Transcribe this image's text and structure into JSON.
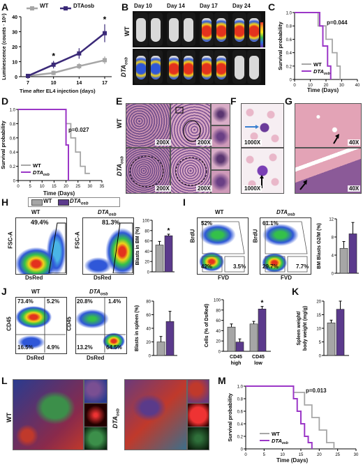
{
  "panels": {
    "A": "A",
    "B": "B",
    "C": "C",
    "D": "D",
    "E": "E",
    "F": "F",
    "G": "G",
    "H": "H",
    "I": "I",
    "J": "J",
    "K": "K",
    "L": "L",
    "M": "M"
  },
  "legend": {
    "wt": "WT",
    "dta": "DTAosb",
    "dta_base": "DTA",
    "dta_sub": "osb"
  },
  "colors": {
    "wt": "#a6a6a6",
    "dta": "#5b3a8c",
    "dta_bright": "#9b37c7",
    "histo": "#c98fb0"
  },
  "panel_a": {
    "ylabel": "Luminescence (counts · 10⁶)",
    "xlabel": "Time after EL4 injection (days)",
    "star": "*",
    "chart_data": {
      "type": "line",
      "categories": [
        "7",
        "10",
        "14",
        "17"
      ],
      "ylim": [
        0,
        40
      ],
      "yticks": [
        "0",
        "10",
        "20",
        "30",
        "40"
      ],
      "series": [
        {
          "name": "WT",
          "values": [
            0.5,
            2.5,
            7,
            11
          ],
          "errors": [
            0.3,
            1.5,
            2,
            2.5
          ]
        },
        {
          "name": "DTAosb",
          "values": [
            0.5,
            8,
            15.5,
            29
          ],
          "errors": [
            0.3,
            2.5,
            3.5,
            6
          ]
        }
      ],
      "annotations": [
        "*",
        "*"
      ]
    }
  },
  "panel_b": {
    "days": [
      "Day 10",
      "Day 14",
      "Day 17",
      "Day 24"
    ],
    "row_wt": "WT",
    "row_dta": "DTAosb"
  },
  "panel_c": {
    "pvalue": "p=0.044",
    "ylabel": "Survival probability",
    "xlabel": "Time (Days)",
    "chart_data": {
      "type": "line",
      "xticks": [
        "0",
        "10",
        "20",
        "30",
        "40"
      ],
      "yticks": [
        "0",
        "0.2",
        "0.4",
        "0.6",
        "0.8",
        "1.0"
      ],
      "xlim": [
        0,
        40
      ],
      "ylim": [
        0,
        1
      ],
      "series": [
        {
          "name": "WT",
          "x": [
            0,
            15,
            15,
            20,
            20,
            24,
            24,
            27,
            27,
            29,
            29
          ],
          "y": [
            1,
            1,
            0.8,
            0.8,
            0.6,
            0.6,
            0.4,
            0.4,
            0.2,
            0.2,
            0
          ]
        },
        {
          "name": "DTAosb",
          "x": [
            0,
            16,
            16,
            18,
            18,
            21,
            21,
            23,
            23
          ],
          "y": [
            1,
            1,
            0.8,
            0.8,
            0.5,
            0.5,
            0.2,
            0.2,
            0
          ]
        }
      ]
    }
  },
  "panel_d": {
    "pvalue": "p=0.027",
    "ylabel": "Survival probability",
    "xlabel": "Time (Days)",
    "chart_data": {
      "type": "line",
      "xticks": [
        "0",
        "5",
        "10",
        "15",
        "20",
        "25",
        "30",
        "35"
      ],
      "yticks": [
        "0",
        "0.2",
        "0.4",
        "0.6",
        "0.8",
        "1.0"
      ],
      "xlim": [
        0,
        35
      ],
      "ylim": [
        0,
        1
      ],
      "series": [
        {
          "name": "WT",
          "x": [
            0,
            20,
            20,
            22,
            22,
            24,
            24,
            26,
            26,
            28,
            28,
            30
          ],
          "y": [
            1,
            1,
            0.8,
            0.8,
            0.6,
            0.6,
            0.4,
            0.4,
            0.2,
            0.2,
            0.1,
            0.1
          ]
        },
        {
          "name": "DTAosb",
          "x": [
            0,
            20,
            20,
            21,
            21
          ],
          "y": [
            1,
            1,
            0.5,
            0.5,
            0
          ]
        }
      ]
    }
  },
  "panel_e": {
    "row_wt": "WT",
    "row_dta": "DTAosb",
    "mag": "200X"
  },
  "panel_f": {
    "mag": "1000X"
  },
  "panel_g": {
    "mag": "40X"
  },
  "panel_h": {
    "wt_title": "WT",
    "dta_title": "DTAosb",
    "wt_pct": "49.4%",
    "dta_pct": "81.3%",
    "yaxis": "FSC-A",
    "xaxis": "DsRed",
    "bar_ylabel": "Blasts in BM (%)",
    "star": "*",
    "chart_data": {
      "type": "bar",
      "categories": [
        "WT",
        "DTAosb"
      ],
      "values": [
        52,
        70
      ],
      "errors": [
        7,
        3
      ],
      "ylim": [
        0,
        100
      ],
      "yticks": [
        "0",
        "20",
        "40",
        "60",
        "80",
        "100"
      ]
    }
  },
  "panel_i": {
    "wt_title": "WT",
    "dta_title": "DTAosb",
    "wt_top": "52%",
    "wt_bl": "42%",
    "wt_br": "3.5%",
    "dta_top": "61.1%",
    "dta_bl": "29.7%",
    "dta_br": "7.7%",
    "yaxis": "BrdU",
    "xaxis": "FVD",
    "bar_ylabel": "BM Blasts G2/M (%)",
    "chart_data": {
      "type": "bar",
      "categories": [
        "WT",
        "DTAosb"
      ],
      "values": [
        5.5,
        8.7
      ],
      "errors": [
        1.5,
        2.5
      ],
      "ylim": [
        0,
        12
      ],
      "yticks": [
        "0",
        "4",
        "8",
        "12"
      ]
    }
  },
  "panel_j": {
    "wt_title": "WT",
    "dta_title": "DTAosb",
    "wt_tl": "73.4%",
    "wt_tr": "5.2%",
    "wt_bl": "16.5%",
    "wt_br": "4.9%",
    "dta_tl": "20.8%",
    "dta_tr": "1.4%",
    "dta_bl": "13.2%",
    "dta_br": "64.5%",
    "yaxis": "CD45",
    "xaxis": "DsRed",
    "bar1_ylabel": "Blasts in spleen (%)",
    "bar2_ylabel": "Cells (% of DsRed)",
    "group1": "CD45\nhigh",
    "group2": "CD45\nlow",
    "group1_l1": "CD45",
    "group1_l2": "high",
    "group2_l1": "CD45",
    "group2_l2": "low",
    "star": "*",
    "chart_data": [
      {
        "type": "bar",
        "categories": [
          "WT",
          "DTAosb"
        ],
        "values": [
          20,
          50
        ],
        "errors": [
          8,
          15
        ],
        "ylim": [
          0,
          80
        ],
        "yticks": [
          "0",
          "20",
          "40",
          "60",
          "80"
        ]
      },
      {
        "type": "bar",
        "categories": [
          "CD45 high",
          "CD45 low"
        ],
        "series": [
          {
            "name": "WT",
            "values": [
              47,
              53
            ]
          },
          {
            "name": "DTAosb",
            "values": [
              18,
              82
            ]
          }
        ],
        "errors": [
          [
            6,
            5
          ],
          [
            6,
            5
          ]
        ],
        "ylim": [
          0,
          100
        ],
        "yticks": [
          "0",
          "20",
          "40",
          "60",
          "80",
          "100"
        ]
      }
    ]
  },
  "panel_k": {
    "ylabel": "Spleen weight/ body weight (mg/g)",
    "ylabel_l1": "Spleen weight/",
    "ylabel_l2": "body weight (mg/g)",
    "chart_data": {
      "type": "bar",
      "categories": [
        "WT",
        "DTAosb"
      ],
      "values": [
        12,
        17
      ],
      "errors": [
        1,
        3
      ],
      "ylim": [
        0,
        20
      ],
      "yticks": [
        "0",
        "5",
        "10",
        "15",
        "20"
      ]
    }
  },
  "panel_l": {
    "row_wt": "WT",
    "row_dta": "DTAosb"
  },
  "panel_m": {
    "pvalue": "p=0.013",
    "ylabel": "Survival probability",
    "xlabel": "Time (Days)",
    "chart_data": {
      "type": "line",
      "xticks": [
        "0",
        "5",
        "10",
        "15",
        "20",
        "25",
        "30"
      ],
      "yticks": [
        "0",
        "0.2",
        "0.4",
        "0.6",
        "0.8",
        "1.0"
      ],
      "xlim": [
        0,
        30
      ],
      "ylim": [
        0,
        1
      ],
      "series": [
        {
          "name": "WT",
          "x": [
            0,
            13,
            13,
            16,
            16,
            18,
            18,
            20,
            20,
            22,
            22,
            24,
            24
          ],
          "y": [
            1,
            1,
            0.9,
            0.9,
            0.7,
            0.7,
            0.5,
            0.5,
            0.3,
            0.3,
            0.1,
            0.1,
            0
          ]
        },
        {
          "name": "DTAosb",
          "x": [
            0,
            13,
            13,
            14,
            14,
            15,
            15,
            16,
            16,
            17,
            17,
            18,
            18
          ],
          "y": [
            1,
            1,
            0.8,
            0.8,
            0.6,
            0.6,
            0.4,
            0.4,
            0.2,
            0.2,
            0.1,
            0.1,
            0
          ]
        }
      ]
    }
  }
}
